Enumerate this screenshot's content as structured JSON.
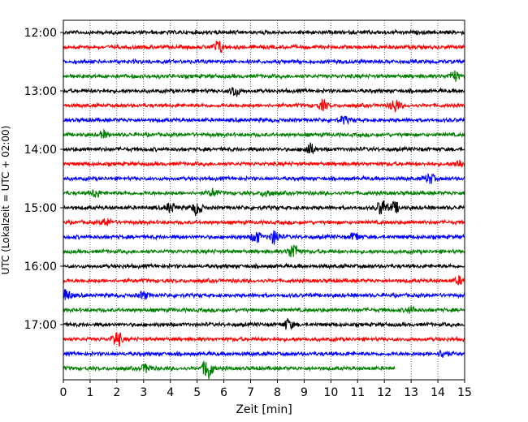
{
  "chart_data": {
    "type": "line",
    "title": "",
    "xlabel": "Zeit  [min]",
    "ylabel": "UTC (Lokalzeit = UTC + 02:00)",
    "xlim": [
      0,
      15
    ],
    "x_ticks": [
      0,
      1,
      2,
      3,
      4,
      5,
      6,
      7,
      8,
      9,
      10,
      11,
      12,
      13,
      14,
      15
    ],
    "x_tick_labels": [
      "0",
      "1",
      "2",
      "3",
      "4",
      "5",
      "6",
      "7",
      "8",
      "9",
      "10",
      "11",
      "12",
      "13",
      "14",
      "15"
    ],
    "y_tick_labels": [
      "12:00",
      "13:00",
      "14:00",
      "15:00",
      "16:00",
      "17:00"
    ],
    "grid": "vertical dotted lines at each minute",
    "trace_interval_min": 15,
    "trace_colors_cycle": [
      "#000000",
      "#ff0000",
      "#0000ff",
      "#008000"
    ],
    "traces": [
      {
        "start": "12:00",
        "color": "#000000",
        "end_min": 15,
        "events": []
      },
      {
        "start": "12:15",
        "color": "#ff0000",
        "end_min": 15,
        "events": [
          {
            "t": 5.8,
            "amp": 1.6
          }
        ]
      },
      {
        "start": "12:30",
        "color": "#0000ff",
        "end_min": 15,
        "events": []
      },
      {
        "start": "12:45",
        "color": "#008000",
        "end_min": 15,
        "events": [
          {
            "t": 14.6,
            "amp": 1.4
          }
        ]
      },
      {
        "start": "13:00",
        "color": "#000000",
        "end_min": 15,
        "events": [
          {
            "t": 6.4,
            "amp": 1.3
          }
        ]
      },
      {
        "start": "13:15",
        "color": "#ff0000",
        "end_min": 15,
        "events": [
          {
            "t": 9.7,
            "amp": 1.2
          },
          {
            "t": 12.4,
            "amp": 1.6
          }
        ]
      },
      {
        "start": "13:30",
        "color": "#0000ff",
        "end_min": 15,
        "events": [
          {
            "t": 10.5,
            "amp": 0.8
          }
        ]
      },
      {
        "start": "13:45",
        "color": "#008000",
        "end_min": 15,
        "events": [
          {
            "t": 1.5,
            "amp": 0.8
          }
        ]
      },
      {
        "start": "14:00",
        "color": "#000000",
        "end_min": 15,
        "events": [
          {
            "t": 9.2,
            "amp": 1.5
          }
        ]
      },
      {
        "start": "14:15",
        "color": "#ff0000",
        "end_min": 15,
        "events": [
          {
            "t": 14.8,
            "amp": 1.0
          }
        ]
      },
      {
        "start": "14:30",
        "color": "#0000ff",
        "end_min": 15,
        "events": [
          {
            "t": 13.7,
            "amp": 1.2
          }
        ]
      },
      {
        "start": "14:45",
        "color": "#008000",
        "end_min": 15,
        "events": [
          {
            "t": 1.2,
            "amp": 1.0
          },
          {
            "t": 5.6,
            "amp": 0.9
          },
          {
            "t": 7.6,
            "amp": 0.9
          }
        ]
      },
      {
        "start": "15:00",
        "color": "#000000",
        "end_min": 15,
        "events": [
          {
            "t": 4.0,
            "amp": 1.2
          },
          {
            "t": 5.0,
            "amp": 1.7
          },
          {
            "t": 11.9,
            "amp": 2.0
          },
          {
            "t": 12.4,
            "amp": 1.3
          }
        ]
      },
      {
        "start": "15:15",
        "color": "#ff0000",
        "end_min": 15,
        "events": [
          {
            "t": 1.6,
            "amp": 1.0
          }
        ]
      },
      {
        "start": "15:30",
        "color": "#0000ff",
        "end_min": 15,
        "events": [
          {
            "t": 7.2,
            "amp": 1.5
          },
          {
            "t": 7.9,
            "amp": 1.7
          },
          {
            "t": 10.9,
            "amp": 1.0
          }
        ]
      },
      {
        "start": "15:45",
        "color": "#008000",
        "end_min": 15,
        "events": [
          {
            "t": 8.6,
            "amp": 2.2
          }
        ]
      },
      {
        "start": "16:00",
        "color": "#000000",
        "end_min": 15,
        "events": []
      },
      {
        "start": "16:15",
        "color": "#ff0000",
        "end_min": 15,
        "events": [
          {
            "t": 14.8,
            "amp": 0.9
          }
        ]
      },
      {
        "start": "16:30",
        "color": "#0000ff",
        "end_min": 15,
        "events": [
          {
            "t": 0.1,
            "amp": 1.4
          },
          {
            "t": 3.0,
            "amp": 0.9
          }
        ]
      },
      {
        "start": "16:45",
        "color": "#008000",
        "end_min": 15,
        "events": [
          {
            "t": 13.0,
            "amp": 0.7
          }
        ]
      },
      {
        "start": "17:00",
        "color": "#000000",
        "end_min": 15,
        "events": [
          {
            "t": 8.4,
            "amp": 1.3
          }
        ]
      },
      {
        "start": "17:15",
        "color": "#ff0000",
        "end_min": 15,
        "events": [
          {
            "t": 2.0,
            "amp": 2.0
          }
        ]
      },
      {
        "start": "17:30",
        "color": "#0000ff",
        "end_min": 15,
        "events": [
          {
            "t": 14.2,
            "amp": 1.0
          }
        ]
      },
      {
        "start": "17:45",
        "color": "#008000",
        "end_min": 12.4,
        "events": [
          {
            "t": 3.1,
            "amp": 1.0
          },
          {
            "t": 5.4,
            "amp": 3.0
          }
        ]
      }
    ]
  }
}
